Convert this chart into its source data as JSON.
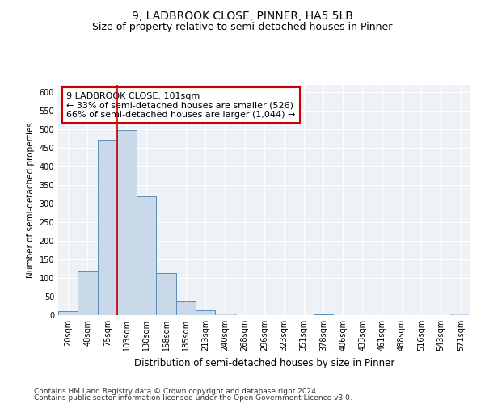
{
  "title": "9, LADBROOK CLOSE, PINNER, HA5 5LB",
  "subtitle": "Size of property relative to semi-detached houses in Pinner",
  "xlabel": "Distribution of semi-detached houses by size in Pinner",
  "ylabel": "Number of semi-detached properties",
  "categories": [
    "20sqm",
    "48sqm",
    "75sqm",
    "103sqm",
    "130sqm",
    "158sqm",
    "185sqm",
    "213sqm",
    "240sqm",
    "268sqm",
    "296sqm",
    "323sqm",
    "351sqm",
    "378sqm",
    "406sqm",
    "433sqm",
    "461sqm",
    "488sqm",
    "516sqm",
    "543sqm",
    "571sqm"
  ],
  "values": [
    10,
    118,
    473,
    498,
    320,
    113,
    38,
    13,
    5,
    1,
    0,
    0,
    0,
    3,
    0,
    0,
    0,
    0,
    0,
    0,
    5
  ],
  "bar_color": "#c9d9ea",
  "bar_edge_color": "#5b8db8",
  "highlight_index": 3,
  "highlight_line_color": "#cc0000",
  "annotation_line1": "9 LADBROOK CLOSE: 101sqm",
  "annotation_line2": "← 33% of semi-detached houses are smaller (526)",
  "annotation_line3": "66% of semi-detached houses are larger (1,044) →",
  "annotation_box_color": "#ffffff",
  "annotation_box_edge": "#cc0000",
  "ylim": [
    0,
    620
  ],
  "yticks": [
    0,
    50,
    100,
    150,
    200,
    250,
    300,
    350,
    400,
    450,
    500,
    550,
    600
  ],
  "background_color": "#eef2f7",
  "grid_color": "#ffffff",
  "footer_line1": "Contains HM Land Registry data © Crown copyright and database right 2024.",
  "footer_line2": "Contains public sector information licensed under the Open Government Licence v3.0.",
  "title_fontsize": 10,
  "subtitle_fontsize": 9,
  "xlabel_fontsize": 8.5,
  "ylabel_fontsize": 7.5,
  "tick_fontsize": 7,
  "annotation_fontsize": 8,
  "footer_fontsize": 6.5
}
